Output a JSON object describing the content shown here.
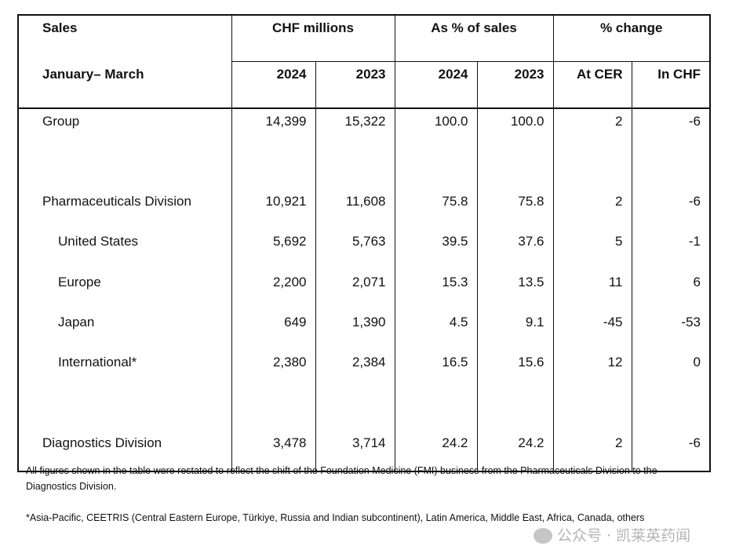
{
  "table": {
    "header_row1": {
      "label": "Sales",
      "groups": [
        "CHF millions",
        "As % of sales",
        "% change"
      ]
    },
    "header_row2": {
      "label": "January– March",
      "columns": [
        "2024",
        "2023",
        "2024",
        "2023",
        "At CER",
        "In CHF"
      ]
    },
    "rows": [
      {
        "label": "Group",
        "indent": false,
        "values": [
          "14,399",
          "15,322",
          "100.0",
          "100.0",
          "2",
          "-6"
        ]
      },
      {
        "label": "",
        "indent": false,
        "values": [
          "",
          "",
          "",
          "",
          "",
          ""
        ]
      },
      {
        "label": "Pharmaceuticals Division",
        "indent": false,
        "values": [
          "10,921",
          "11,608",
          "75.8",
          "75.8",
          "2",
          "-6"
        ]
      },
      {
        "label": "United States",
        "indent": true,
        "values": [
          "5,692",
          "5,763",
          "39.5",
          "37.6",
          "5",
          "-1"
        ]
      },
      {
        "label": "Europe",
        "indent": true,
        "values": [
          "2,200",
          "2,071",
          "15.3",
          "13.5",
          "11",
          "6"
        ]
      },
      {
        "label": "Japan",
        "indent": true,
        "values": [
          "649",
          "1,390",
          "4.5",
          "9.1",
          "-45",
          "-53"
        ]
      },
      {
        "label": "International*",
        "indent": true,
        "values": [
          "2,380",
          "2,384",
          "16.5",
          "15.6",
          "12",
          "0"
        ]
      },
      {
        "label": "",
        "indent": false,
        "values": [
          "",
          "",
          "",
          "",
          "",
          ""
        ]
      },
      {
        "label": "Diagnostics Division",
        "indent": false,
        "values": [
          "3,478",
          "3,714",
          "24.2",
          "24.2",
          "2",
          "-6"
        ]
      }
    ]
  },
  "notes": {
    "restatement": "All figures shown in the table were restated to reflect the shift of the Foundation Medicine (FMI) business from the Pharmaceuticals Division to the Diagnostics Division.",
    "footnote": "*Asia-Pacific, CEETRIS (Central Eastern Europe, Türkiye, Russia and Indian subcontinent), Latin America, Middle East, Africa, Canada, others"
  },
  "watermark": {
    "text": "公众号 · 凯莱英药闻",
    "icon": "wechat-icon"
  }
}
